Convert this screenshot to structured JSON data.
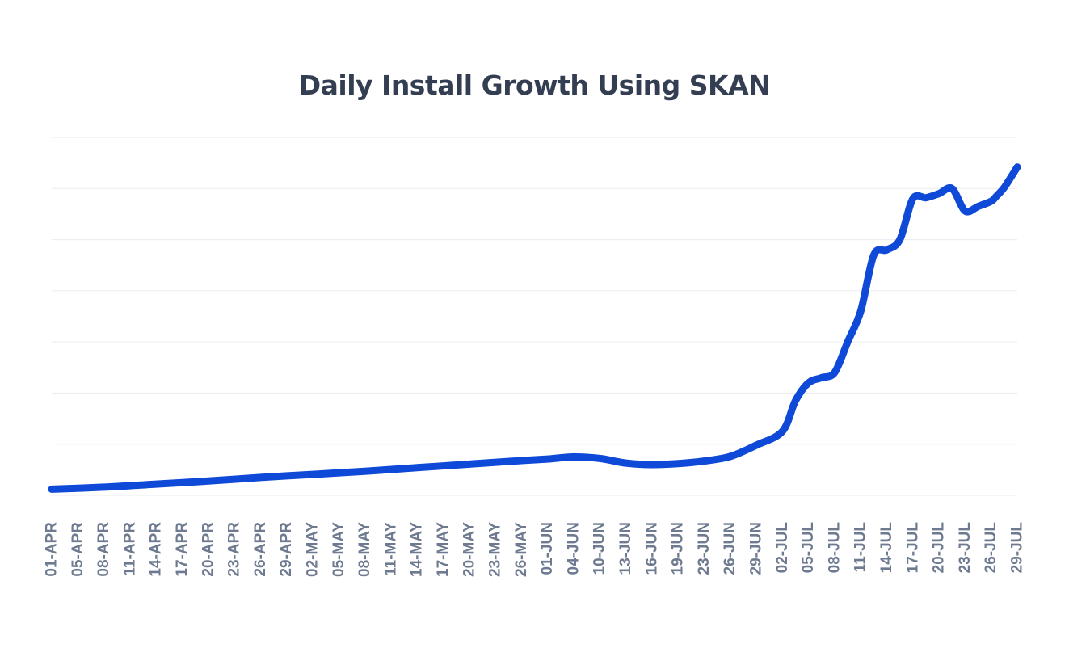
{
  "chart_data": {
    "type": "line",
    "title": "Daily Install Growth Using SKAN",
    "xlabel": "",
    "ylabel": "",
    "grid": true,
    "y_tick_labels_shown": false,
    "line_color": "#0f49d7",
    "grid_color": "#e9ebef",
    "tick_label_color": "#6e7a90",
    "title_color": "#343e52",
    "x_tick_labels": [
      "01-APR",
      "05-APR",
      "08-APR",
      "11-APR",
      "14-APR",
      "17-APR",
      "20-APR",
      "23-APR",
      "26-APR",
      "29-APR",
      "02-MAY",
      "05-MAY",
      "08-MAY",
      "11-MAY",
      "14-MAY",
      "17-MAY",
      "20-MAY",
      "23-MAY",
      "26-MAY",
      "01-JUN",
      "04-JUN",
      "10-JUN",
      "13-JUN",
      "16-JUN",
      "19-JUN",
      "23-JUN",
      "26-JUN",
      "29-JUN",
      "02-JUL",
      "05-JUL",
      "08-JUL",
      "11-JUL",
      "14-JUL",
      "17-JUL",
      "20-JUL",
      "23-JUL",
      "26-JUL",
      "29-JUL"
    ],
    "ylim": [
      0,
      7
    ],
    "series": [
      {
        "x": [
          0,
          2,
          4,
          6,
          8,
          10,
          12,
          14,
          16,
          18,
          19,
          20,
          21,
          22,
          23,
          24,
          25,
          26,
          27,
          28,
          28.5,
          29,
          29.5,
          30,
          30.5,
          31,
          31.5,
          32,
          32.5,
          33,
          33.5,
          34,
          34.5,
          35,
          35.5,
          36,
          36.2,
          36.5,
          37
        ],
        "values": [
          0.12,
          0.16,
          0.22,
          0.28,
          0.35,
          0.41,
          0.47,
          0.54,
          0.61,
          0.68,
          0.71,
          0.75,
          0.72,
          0.63,
          0.6,
          0.62,
          0.67,
          0.76,
          0.98,
          1.25,
          1.85,
          2.2,
          2.3,
          2.4,
          3.0,
          3.6,
          4.7,
          4.8,
          5.0,
          5.8,
          5.82,
          5.9,
          6.0,
          5.56,
          5.65,
          5.75,
          5.85,
          6.02,
          6.42
        ]
      }
    ]
  }
}
